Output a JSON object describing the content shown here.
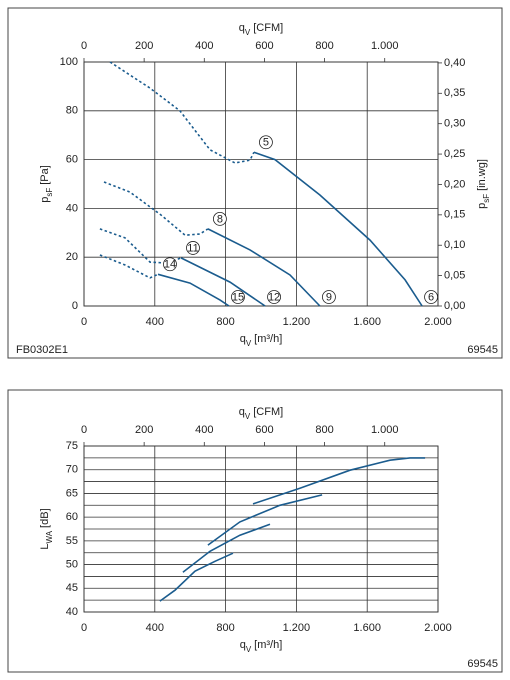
{
  "chart_data": [
    {
      "type": "line",
      "color": "#1b5c8e",
      "xlabel": {
        "main": "q",
        "sub": "V",
        "unit": "[m³/h]"
      },
      "x2label": {
        "main": "q",
        "sub": "V",
        "unit": "[CFM]"
      },
      "ylabel": {
        "main": "p",
        "sub": "sF",
        "unit": "[Pa]"
      },
      "y2label": {
        "main": "p",
        "sub": "sF",
        "unit": "[in.wg]"
      },
      "footnote_left": "FB0302E1",
      "footnote_right": "69545",
      "xlim": [
        0,
        2000
      ],
      "xticks": [
        0,
        400,
        800,
        {
          "value": 1200,
          "label": "1.200"
        },
        {
          "value": 1600,
          "label": "1.600"
        },
        {
          "value": 2000,
          "label": "2.000"
        }
      ],
      "x2lim": [
        0,
        1177.2
      ],
      "x2ticks": [
        0,
        200,
        400,
        600,
        800,
        {
          "value": 1000,
          "label": "1.000"
        }
      ],
      "ylim": [
        0,
        100
      ],
      "yticks": [
        0,
        20,
        40,
        60,
        80,
        100
      ],
      "y2lim": [
        0,
        0.4015
      ],
      "y2ticks": [
        {
          "value": 0,
          "label": "0,00"
        },
        {
          "value": 0.05,
          "label": "0,05"
        },
        {
          "value": 0.1,
          "label": "0,10"
        },
        {
          "value": 0.15,
          "label": "0,15"
        },
        {
          "value": 0.2,
          "label": "0,20"
        },
        {
          "value": 0.25,
          "label": "0,25"
        },
        {
          "value": 0.3,
          "label": "0,30"
        },
        {
          "value": 0.35,
          "label": "0,35"
        },
        {
          "value": 0.4,
          "label": "0,40"
        }
      ],
      "grid": true,
      "series": [
        {
          "dashed": true,
          "x": [
            147,
            373,
            542,
            712,
            853,
            938,
            960
          ],
          "values": [
            100,
            89.3,
            80,
            64,
            58.6,
            59.8,
            63
          ]
        },
        {
          "dashed": false,
          "start_label": "5",
          "end_label": "6",
          "x": [
            960,
            1079,
            1333,
            1616,
            1814,
            1910
          ],
          "values": [
            63,
            60,
            45.5,
            27,
            10.7,
            0
          ]
        },
        {
          "dashed": true,
          "x": [
            113,
            260,
            435,
            571,
            655,
            700
          ],
          "values": [
            50.8,
            46.7,
            37.3,
            29,
            29.5,
            31.6
          ]
        },
        {
          "dashed": false,
          "start_label": "8",
          "end_label": "9",
          "x": [
            700,
            938,
            1164,
            1333
          ],
          "values": [
            31.6,
            23,
            12.7,
            0
          ]
        },
        {
          "dashed": true,
          "x": [
            90,
            232,
            373,
            469,
            548
          ],
          "values": [
            31.6,
            27.9,
            18,
            17.6,
            19.7
          ]
        },
        {
          "dashed": false,
          "start_label": "11",
          "end_label": "12",
          "x": [
            548,
            825,
            1023
          ],
          "values": [
            19.7,
            9.8,
            0
          ]
        },
        {
          "dashed": true,
          "x": [
            90,
            232,
            373,
            418
          ],
          "values": [
            20.9,
            16.8,
            11.5,
            13
          ]
        },
        {
          "dashed": false,
          "start_label": "14",
          "end_label": "15",
          "x": [
            418,
            599,
            768,
            819
          ],
          "values": [
            13,
            9.4,
            2.5,
            0
          ]
        }
      ]
    },
    {
      "type": "line",
      "color": "#1b5c8e",
      "xlabel": {
        "main": "q",
        "sub": "V",
        "unit": "[m³/h]"
      },
      "x2label": {
        "main": "q",
        "sub": "V",
        "unit": "[CFM]"
      },
      "ylabel": {
        "main": "L",
        "sub": "WA",
        "unit": "[dB]"
      },
      "footnote_right": "69545",
      "xlim": [
        0,
        2000
      ],
      "xticks": [
        0,
        400,
        800,
        {
          "value": 1200,
          "label": "1.200"
        },
        {
          "value": 1600,
          "label": "1.600"
        },
        {
          "value": 2000,
          "label": "2.000"
        }
      ],
      "x2lim": [
        0,
        1177.2
      ],
      "x2ticks": [
        0,
        200,
        400,
        600,
        800,
        {
          "value": 1000,
          "label": "1.000"
        }
      ],
      "ylim": [
        40,
        75
      ],
      "yticks": [
        40,
        45,
        50,
        55,
        60,
        65,
        70,
        75
      ],
      "minor_yticks": [
        42.5,
        47.5,
        52.5,
        57.5,
        62.5,
        67.5,
        72.5
      ],
      "grid": true,
      "series": [
        {
          "dashed": false,
          "x": [
            955,
            1220,
            1503,
            1729,
            1842,
            1927
          ],
          "values": [
            62.8,
            66.1,
            69.9,
            72,
            72.5,
            72.5
          ]
        },
        {
          "dashed": false,
          "x": [
            700,
            881,
            1107,
            1345
          ],
          "values": [
            54.1,
            59,
            62.5,
            64.7
          ]
        },
        {
          "dashed": false,
          "x": [
            559,
            712,
            881,
            1051
          ],
          "values": [
            48.4,
            52.8,
            56.2,
            58.5
          ]
        },
        {
          "dashed": false,
          "x": [
            429,
            514,
            627,
            740,
            842
          ],
          "values": [
            42.3,
            44.6,
            48.6,
            50.7,
            52.4
          ]
        }
      ]
    }
  ]
}
